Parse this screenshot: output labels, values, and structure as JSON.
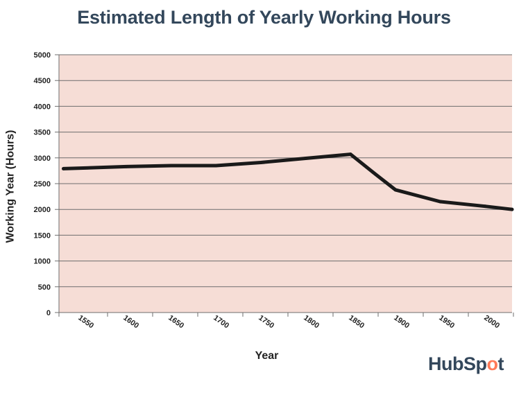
{
  "chart_data": {
    "type": "line",
    "title": "Estimated Length of Yearly Working Hours",
    "xlabel": "Year",
    "ylabel": "Working Year (Hours)",
    "ylim": [
      0,
      5000
    ],
    "y_ticks": [
      "0",
      "500",
      "1000",
      "1500",
      "2000",
      "2500",
      "3000",
      "3500",
      "4000",
      "4500",
      "5000"
    ],
    "x_ticks": [
      "1550",
      "1600",
      "1650",
      "1700",
      "1750",
      "1800",
      "1850",
      "1900",
      "1950",
      "2000"
    ],
    "grid": true,
    "background_color": "#f6ddd6",
    "line_color": "#1a1a1a",
    "series": [
      {
        "x": [
          1530,
          1600,
          1650,
          1700,
          1750,
          1800,
          1850,
          1875,
          1900,
          1950,
          2000,
          2030
        ],
        "y": [
          2790,
          2830,
          2850,
          2850,
          2910,
          2990,
          3070,
          2720,
          2380,
          2150,
          2060,
          2000
        ]
      }
    ]
  },
  "logo": {
    "text_before": "HubSp",
    "o": "o",
    "text_after": "t"
  }
}
